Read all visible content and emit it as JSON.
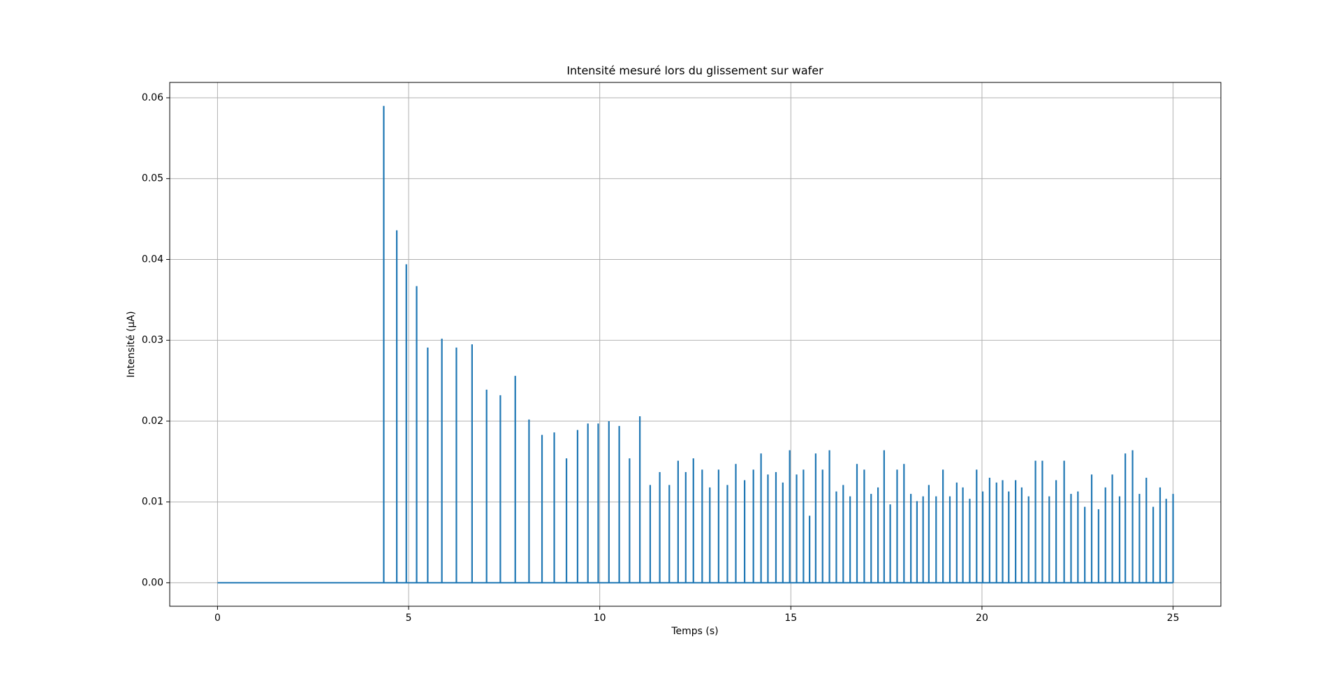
{
  "chart_data": {
    "type": "stem",
    "title": "Intensité mesuré lors du glissement sur wafer",
    "x_label": "Temps (s)",
    "y_label": "Intensité (µA)",
    "color": "#1f77b4",
    "grid": true,
    "xlim": [
      -1.25,
      26.25
    ],
    "ylim": [
      -0.0029,
      0.0619
    ],
    "xticks": [
      0,
      5,
      10,
      15,
      20,
      25
    ],
    "yticks": [
      {
        "value": 0,
        "label": "0.00"
      },
      {
        "value": 0.01,
        "label": "0.01"
      },
      {
        "value": 0.02,
        "label": "0.02"
      },
      {
        "value": 0.03,
        "label": "0.03"
      },
      {
        "value": 0.04,
        "label": "0.04"
      },
      {
        "value": 0.05,
        "label": "0.05"
      },
      {
        "value": 0.06,
        "label": "0.06"
      }
    ],
    "x": [
      0,
      4.35,
      4.69,
      4.94,
      5.21,
      5.5,
      5.87,
      6.25,
      6.66,
      7.04,
      7.4,
      7.79,
      8.15,
      8.49,
      8.81,
      9.13,
      9.42,
      9.69,
      9.96,
      10.24,
      10.51,
      10.78,
      11.05,
      11.32,
      11.57,
      11.82,
      12.05,
      12.25,
      12.45,
      12.68,
      12.88,
      13.11,
      13.34,
      13.56,
      13.79,
      14.02,
      14.22,
      14.4,
      14.61,
      14.79,
      14.97,
      15.15,
      15.33,
      15.49,
      15.65,
      15.83,
      16.01,
      16.19,
      16.37,
      16.55,
      16.73,
      16.92,
      17.1,
      17.28,
      17.44,
      17.6,
      17.78,
      17.96,
      18.14,
      18.3,
      18.46,
      18.61,
      18.8,
      18.98,
      19.16,
      19.34,
      19.5,
      19.68,
      19.86,
      20.02,
      20.2,
      20.38,
      20.54,
      20.7,
      20.88,
      21.04,
      21.22,
      21.4,
      21.58,
      21.76,
      21.94,
      22.15,
      22.33,
      22.51,
      22.69,
      22.87,
      23.05,
      23.23,
      23.41,
      23.6,
      23.75,
      23.94,
      24.12,
      24.3,
      24.48,
      24.66,
      24.82,
      25
    ],
    "values": [
      0,
      0.059,
      0.0436,
      0.0394,
      0.0367,
      0.0291,
      0.0302,
      0.0291,
      0.0295,
      0.0239,
      0.0232,
      0.0256,
      0.0202,
      0.0183,
      0.0186,
      0.0154,
      0.0189,
      0.0197,
      0.0197,
      0.02,
      0.0194,
      0.0154,
      0.0206,
      0.0121,
      0.0137,
      0.0121,
      0.0151,
      0.0137,
      0.0154,
      0.014,
      0.0118,
      0.014,
      0.0121,
      0.0147,
      0.0127,
      0.014,
      0.016,
      0.0134,
      0.0137,
      0.0124,
      0.0164,
      0.0134,
      0.014,
      0.0083,
      0.016,
      0.014,
      0.0164,
      0.0113,
      0.0121,
      0.0107,
      0.0147,
      0.014,
      0.011,
      0.0118,
      0.0164,
      0.0097,
      0.014,
      0.0147,
      0.011,
      0.0101,
      0.0107,
      0.0121,
      0.0107,
      0.014,
      0.0107,
      0.0124,
      0.0118,
      0.0104,
      0.014,
      0.0113,
      0.013,
      0.0124,
      0.0127,
      0.0113,
      0.0127,
      0.0118,
      0.0107,
      0.0151,
      0.0151,
      0.0107,
      0.0127,
      0.0151,
      0.011,
      0.0113,
      0.0094,
      0.0134,
      0.0091,
      0.0118,
      0.0134,
      0.0107,
      0.016,
      0.0164,
      0.011,
      0.013,
      0.0094,
      0.0118,
      0.0104,
      0.011
    ]
  }
}
